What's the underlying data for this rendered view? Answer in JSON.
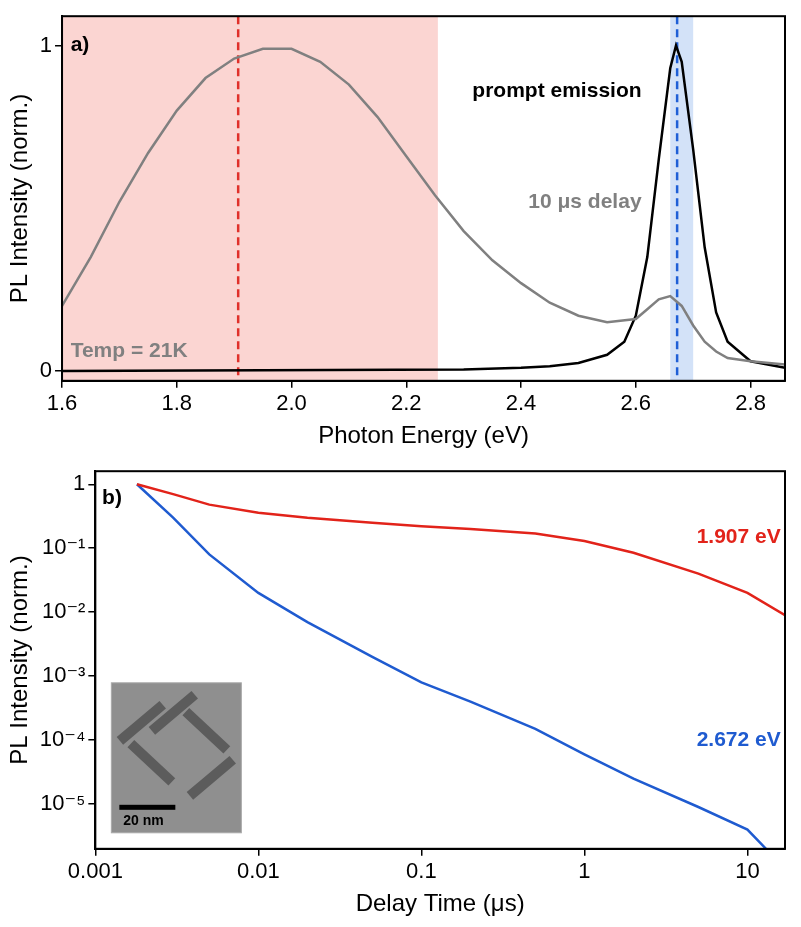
{
  "chart_data": [
    {
      "type": "line",
      "xlabel": "Photon Energy (eV)",
      "ylabel": "PL Intensity (norm.)",
      "xlim": [
        1.6,
        2.86
      ],
      "xticks": [
        1.6,
        1.8,
        {
          "value": 2,
          "label": "2.0"
        },
        2.2,
        2.4,
        2.6,
        2.8
      ],
      "ylim": [
        -0.03,
        1.09
      ],
      "yticks": [
        0,
        1
      ],
      "grid": false,
      "series": [
        {
          "color": "#808080",
          "x": [
            1.6,
            1.65,
            1.7,
            1.75,
            1.8,
            1.85,
            1.9,
            1.95,
            2.0,
            2.05,
            2.1,
            2.15,
            2.2,
            2.25,
            2.3,
            2.35,
            2.4,
            2.45,
            2.5,
            2.55,
            2.6,
            2.62,
            2.64,
            2.66,
            2.68,
            2.7,
            2.72,
            2.74,
            2.76,
            2.8,
            2.86
          ],
          "values": [
            0.2,
            0.35,
            0.52,
            0.67,
            0.8,
            0.9,
            0.96,
            0.99,
            0.99,
            0.95,
            0.88,
            0.78,
            0.66,
            0.54,
            0.43,
            0.34,
            0.27,
            0.21,
            0.17,
            0.15,
            0.16,
            0.19,
            0.22,
            0.23,
            0.2,
            0.14,
            0.09,
            0.06,
            0.04,
            0.03,
            0.02
          ]
        },
        {
          "color": "#000000",
          "x": [
            1.6,
            2.3,
            2.4,
            2.45,
            2.5,
            2.55,
            2.58,
            2.6,
            2.62,
            2.64,
            2.66,
            2.67,
            2.68,
            2.7,
            2.72,
            2.74,
            2.76,
            2.8,
            2.86
          ],
          "values": [
            0,
            0.005,
            0.01,
            0.015,
            0.025,
            0.05,
            0.09,
            0.17,
            0.35,
            0.65,
            0.93,
            1.0,
            0.95,
            0.68,
            0.38,
            0.18,
            0.09,
            0.03,
            0.01
          ]
        }
      ],
      "spans": [
        {
          "x": [
            1.6,
            2.255
          ],
          "color": "#fbd5d2"
        },
        {
          "x": [
            2.66,
            2.7
          ],
          "color": "#d3e2f8"
        }
      ],
      "vlines": [
        {
          "x": 1.907,
          "color": "#e0302a",
          "line_style": "dashed"
        },
        {
          "x": 2.672,
          "color": "#1f5fd6",
          "line_style": "dashed"
        }
      ],
      "annotations": [
        {
          "text": "a)",
          "x": 1.615,
          "y": 1.0,
          "color": "#000000"
        },
        {
          "text": "prompt emission",
          "x": 2.61,
          "y": 0.86,
          "color": "#000000"
        },
        {
          "text": "10 μs delay",
          "x": 2.61,
          "y": 0.52,
          "color": "#808080"
        },
        {
          "text": "Temp = 21K",
          "x": 1.615,
          "y": 0.06,
          "color": "#808080"
        }
      ]
    },
    {
      "type": "line",
      "xlabel": "Delay Time (μs)",
      "ylabel": "PL Intensity (norm.)",
      "log": true,
      "xlim": [
        0.001,
        17
      ],
      "xticks": [
        0.001,
        0.01,
        0.1,
        1,
        10
      ],
      "ylim": [
        2e-06,
        1.6
      ],
      "yticks": [
        1,
        {
          "value": 0.1,
          "label": "10⁻¹"
        },
        {
          "value": 0.01,
          "label": "10⁻²"
        },
        {
          "value": 0.001,
          "label": "10⁻³"
        },
        {
          "value": 0.0001,
          "label": "10⁻⁴"
        },
        {
          "value": 1e-05,
          "label": "10⁻⁵"
        }
      ],
      "grid": false,
      "series": [
        {
          "color": "#e2231a",
          "x": [
            0.0018,
            0.003,
            0.005,
            0.01,
            0.02,
            0.05,
            0.1,
            0.2,
            0.5,
            1,
            2,
            5,
            10,
            17
          ],
          "values": [
            1,
            0.7,
            0.48,
            0.36,
            0.3,
            0.25,
            0.22,
            0.2,
            0.17,
            0.13,
            0.085,
            0.04,
            0.02,
            0.009
          ]
        },
        {
          "color": "#1f5bd0",
          "x": [
            0.0018,
            0.003,
            0.005,
            0.01,
            0.02,
            0.05,
            0.1,
            0.2,
            0.5,
            1,
            2,
            5,
            10,
            13
          ],
          "values": [
            1,
            0.3,
            0.08,
            0.02,
            0.007,
            0.002,
            0.0008,
            0.0004,
            0.00015,
            6e-05,
            2.5e-05,
            9e-06,
            4e-06,
            2e-06
          ]
        }
      ],
      "annotations": [
        {
          "text": "b)",
          "x": 0.0011,
          "y": 0.6,
          "color": "#000000"
        },
        {
          "text": "1.907 eV",
          "x": 16,
          "y": 0.15,
          "color": "#e2231a"
        },
        {
          "text": "2.672 eV",
          "x": 16,
          "y": 0.0001,
          "color": "#1f5bd0"
        }
      ],
      "inset": {
        "label": "20 nm"
      }
    }
  ]
}
